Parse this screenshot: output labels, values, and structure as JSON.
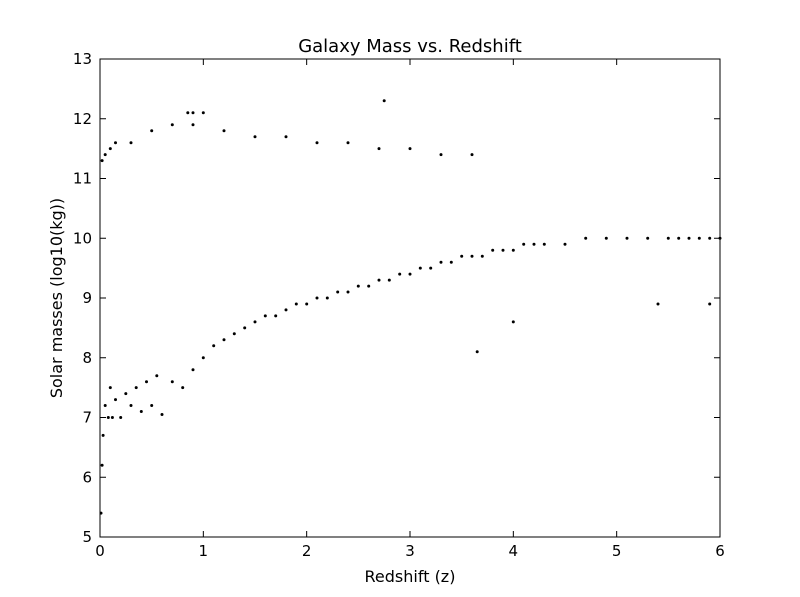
{
  "chart_data": {
    "type": "scatter",
    "title": "Galaxy Mass vs. Redshift",
    "xlabel": "Redshift (z)",
    "ylabel": "Solar masses (log10(kg))",
    "xlim": [
      0,
      6
    ],
    "ylim": [
      5,
      13
    ],
    "xticks": [
      "0",
      "1",
      "2",
      "3",
      "4",
      "5",
      "6"
    ],
    "yticks": [
      "5",
      "6",
      "7",
      "8",
      "9",
      "10",
      "11",
      "12",
      "13"
    ],
    "grid": false,
    "legend": "none",
    "marker_color": "#000000",
    "series": [
      {
        "x": [
          0.01,
          0.02,
          0.03,
          0.05,
          0.08,
          0.1,
          0.12,
          0.15,
          0.2,
          0.25,
          0.3,
          0.35,
          0.4,
          0.45,
          0.5,
          0.55,
          0.6,
          0.7,
          0.8,
          0.9,
          1.0,
          1.1,
          1.2,
          1.3,
          1.4,
          1.5,
          1.6,
          1.7,
          1.8,
          1.9,
          2.0,
          2.1,
          2.2,
          2.3,
          2.4,
          2.5,
          2.6,
          2.7,
          2.8,
          2.9,
          3.0,
          3.1,
          3.2,
          3.3,
          3.4,
          3.5,
          3.6,
          3.7,
          3.8,
          3.9,
          4.0,
          4.1,
          4.2,
          4.3,
          4.5,
          4.7,
          4.9,
          5.1,
          5.3,
          5.5,
          5.6,
          5.7,
          5.8,
          5.9,
          6.0,
          0.02,
          0.05,
          0.1,
          0.15,
          0.3,
          0.5,
          0.7,
          0.9,
          1.2,
          1.5,
          1.8,
          2.1,
          2.4,
          2.7,
          3.0,
          3.3,
          3.6,
          0.85,
          0.9,
          1.0,
          2.75,
          3.65,
          4.0,
          5.4,
          5.9
        ],
        "y": [
          5.4,
          6.2,
          6.7,
          7.2,
          7.0,
          7.5,
          7.0,
          7.3,
          7.0,
          7.4,
          7.2,
          7.5,
          7.1,
          7.6,
          7.2,
          7.7,
          7.05,
          7.6,
          7.5,
          7.8,
          8.0,
          8.2,
          8.3,
          8.4,
          8.5,
          8.6,
          8.7,
          8.7,
          8.8,
          8.9,
          8.9,
          9.0,
          9.0,
          9.1,
          9.1,
          9.2,
          9.2,
          9.3,
          9.3,
          9.4,
          9.4,
          9.5,
          9.5,
          9.6,
          9.6,
          9.7,
          9.7,
          9.7,
          9.8,
          9.8,
          9.8,
          9.9,
          9.9,
          9.9,
          9.9,
          10.0,
          10.0,
          10.0,
          10.0,
          10.0,
          10.0,
          10.0,
          10.0,
          10.0,
          10.0,
          11.3,
          11.4,
          11.5,
          11.6,
          11.6,
          11.8,
          11.9,
          11.9,
          11.8,
          11.7,
          11.7,
          11.6,
          11.6,
          11.5,
          11.5,
          11.4,
          11.4,
          12.1,
          12.1,
          12.1,
          12.3,
          8.1,
          8.6,
          8.9,
          8.9
        ]
      }
    ]
  }
}
